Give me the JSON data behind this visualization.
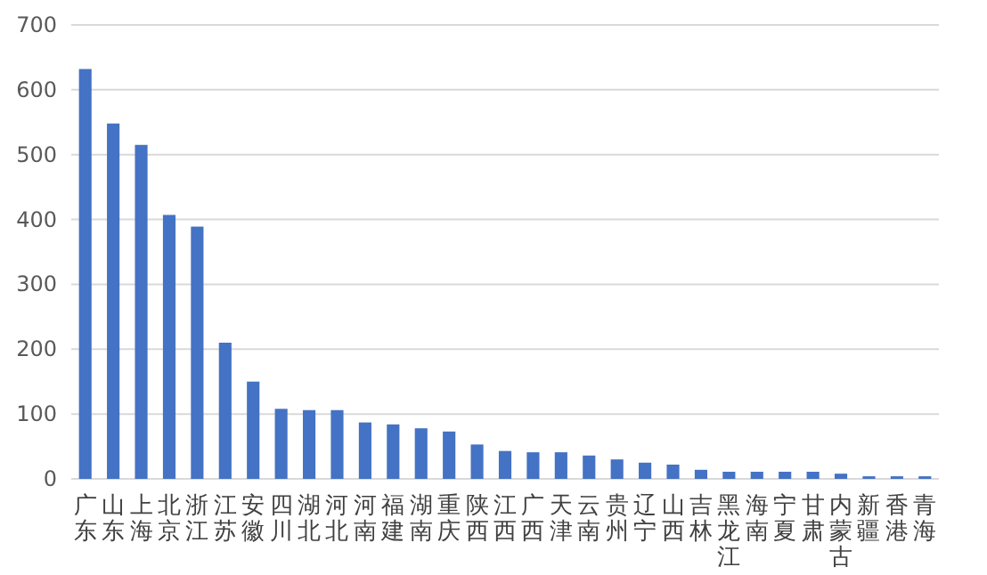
{
  "chart_data": {
    "type": "bar",
    "categories": [
      "广东",
      "山东",
      "上海",
      "北京",
      "浙江",
      "江苏",
      "安徽",
      "四川",
      "湖北",
      "河北",
      "河南",
      "福建",
      "湖南",
      "重庆",
      "陕西",
      "江西",
      "广西",
      "天津",
      "云南",
      "贵州",
      "辽宁",
      "山西",
      "吉林",
      "黑龙江",
      "海南",
      "宁夏",
      "甘肃",
      "内蒙古",
      "新疆",
      "香港",
      "青海"
    ],
    "values": [
      632,
      548,
      515,
      407,
      389,
      210,
      150,
      108,
      106,
      106,
      87,
      84,
      78,
      73,
      53,
      43,
      41,
      41,
      36,
      30,
      25,
      22,
      14,
      11,
      11,
      11,
      11,
      8,
      4,
      4,
      4
    ],
    "color": "#4472c4",
    "ylim": [
      0,
      700
    ],
    "yticks": [
      0,
      100,
      200,
      300,
      400,
      500,
      600,
      700
    ],
    "grid": "y"
  }
}
